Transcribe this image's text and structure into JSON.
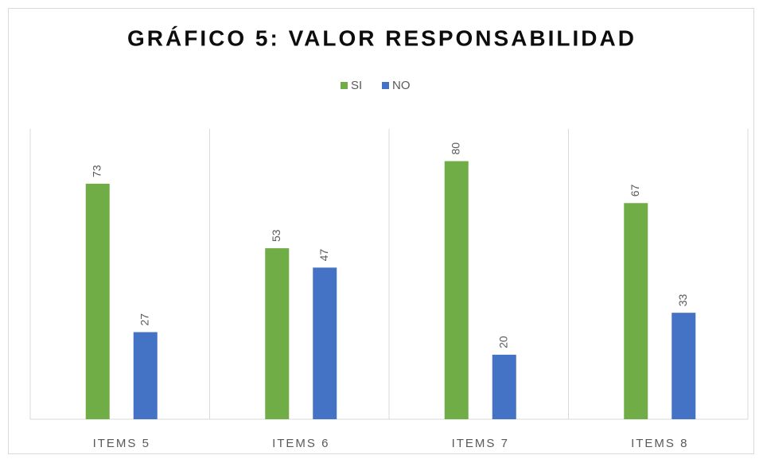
{
  "chart_data": {
    "type": "bar",
    "title": "GRÁFICO 5: VALOR RESPONSABILIDAD",
    "categories": [
      "ITEMS 5",
      "ITEMS 6",
      "ITEMS 7",
      "ITEMS 8"
    ],
    "series": [
      {
        "name": "SI",
        "color": "#70ad47",
        "values": [
          73,
          53,
          80,
          67
        ]
      },
      {
        "name": "NO",
        "color": "#4472c4",
        "values": [
          27,
          47,
          20,
          33
        ]
      }
    ],
    "ylim": [
      0,
      90
    ],
    "legend": "top"
  }
}
